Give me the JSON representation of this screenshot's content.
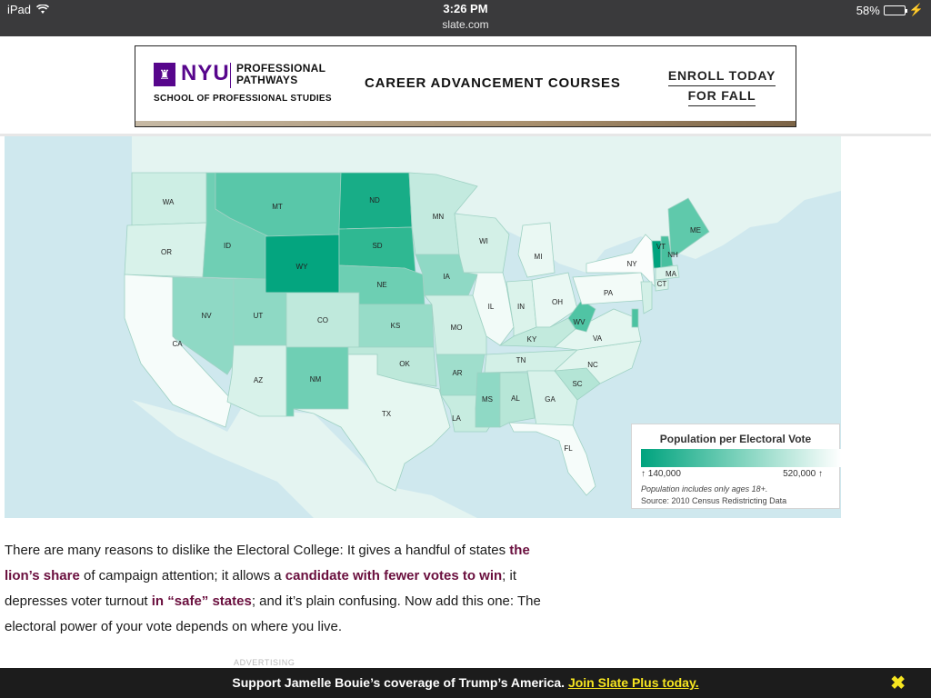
{
  "status_bar": {
    "device": "iPad",
    "time": "3:26 PM",
    "url": "slate.com",
    "battery": "58%",
    "battery_level": 0.58
  },
  "ad": {
    "logo_text": "NYU",
    "pathways": "PROFESSIONAL\nPATHWAYS",
    "school": "SCHOOL OF PROFESSIONAL STUDIES",
    "headline": "CAREER ADVANCEMENT COURSES",
    "cta_line1": "ENROLL TODAY",
    "cta_line2": "FOR FALL"
  },
  "map": {
    "states": [
      {
        "abbr": "WA",
        "color": "#cdeee4"
      },
      {
        "abbr": "OR",
        "color": "#d8f2ea"
      },
      {
        "abbr": "CA",
        "color": "#f6fcfa"
      },
      {
        "abbr": "NV",
        "color": "#8fd9c5"
      },
      {
        "abbr": "ID",
        "color": "#6fcfb4"
      },
      {
        "abbr": "MT",
        "color": "#59c7a9"
      },
      {
        "abbr": "WY",
        "color": "#04a57f"
      },
      {
        "abbr": "UT",
        "color": "#8ed9c4"
      },
      {
        "abbr": "AZ",
        "color": "#d8f2ea"
      },
      {
        "abbr": "CO",
        "color": "#bfe9dc"
      },
      {
        "abbr": "NM",
        "color": "#6fcfb4"
      },
      {
        "abbr": "ND",
        "color": "#18ad87"
      },
      {
        "abbr": "SD",
        "color": "#2fb892"
      },
      {
        "abbr": "NE",
        "color": "#6dcfb3"
      },
      {
        "abbr": "KS",
        "color": "#97dcc8"
      },
      {
        "abbr": "OK",
        "color": "#bde8da"
      },
      {
        "abbr": "TX",
        "color": "#e6f7f1"
      },
      {
        "abbr": "MN",
        "color": "#c3eadf"
      },
      {
        "abbr": "IA",
        "color": "#8fd9c5"
      },
      {
        "abbr": "MO",
        "color": "#d0efe5"
      },
      {
        "abbr": "AR",
        "color": "#9fdecc"
      },
      {
        "abbr": "LA",
        "color": "#c7ece0"
      },
      {
        "abbr": "WI",
        "color": "#d3f0e7"
      },
      {
        "abbr": "IL",
        "color": "#f2fbf8"
      },
      {
        "abbr": "MI",
        "color": "#eaf8f3"
      },
      {
        "abbr": "IN",
        "color": "#dbf3eb"
      },
      {
        "abbr": "OH",
        "color": "#e9f8f3"
      },
      {
        "abbr": "KY",
        "color": "#c2eadd"
      },
      {
        "abbr": "TN",
        "color": "#d3f0e7"
      },
      {
        "abbr": "MS",
        "color": "#8fd9c5"
      },
      {
        "abbr": "AL",
        "color": "#b7e6d7"
      },
      {
        "abbr": "GA",
        "color": "#d8f2ea"
      },
      {
        "abbr": "FL",
        "color": "#f6fcfa"
      },
      {
        "abbr": "SC",
        "color": "#b4e5d6"
      },
      {
        "abbr": "NC",
        "color": "#e1f5ee"
      },
      {
        "abbr": "VA",
        "color": "#e4f6f0"
      },
      {
        "abbr": "WV",
        "color": "#50c4a4"
      },
      {
        "abbr": "PA",
        "color": "#f3fbf8"
      },
      {
        "abbr": "NY",
        "color": "#fafdfc"
      },
      {
        "abbr": "VT",
        "color": "#00a37e"
      },
      {
        "abbr": "NH",
        "color": "#49c09f"
      },
      {
        "abbr": "ME",
        "color": "#5fc9ab"
      },
      {
        "abbr": "MA",
        "color": "#dbf3eb"
      },
      {
        "abbr": "CT",
        "color": "#dbf3eb"
      },
      {
        "abbr": "NJ",
        "color": "#d3f0e7"
      },
      {
        "abbr": "DE",
        "color": "#4cc2a1"
      }
    ],
    "legend": {
      "title": "Population per Electoral Vote",
      "min_label": "↑ 140,000",
      "max_label": "520,000 ↑",
      "note": "Population includes only ages 18+.",
      "source": "Source: 2010 Census Redistricting Data"
    }
  },
  "article": {
    "p1_a": "There are many reasons to dislike the Electoral College: It gives a handful of states ",
    "link1": "the lion’s share",
    "p1_b": " of campaign attention; it allows a ",
    "link2": "candidate with fewer votes to win",
    "p1_c": "; it depresses voter turnout ",
    "link3": "in “safe” states",
    "p1_d": "; and it’s plain confusing. Now add this one: The electoral power of your vote depends on where you live."
  },
  "advertising_label": "ADVERTISING",
  "bottom_bar": {
    "text": "Support Jamelle Bouie’s coverage of Trump’s America. ",
    "link": "Join Slate Plus today.",
    "close": "✖"
  }
}
